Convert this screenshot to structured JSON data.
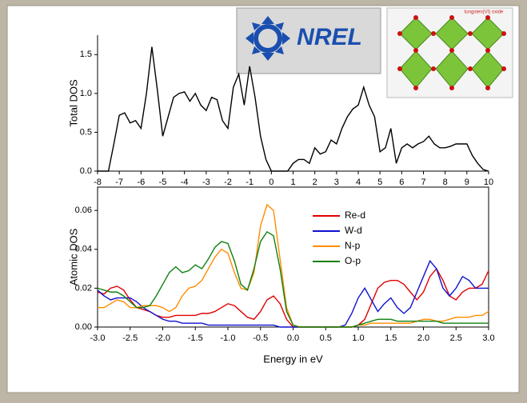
{
  "logo": {
    "text": "NREL"
  },
  "inset": {
    "caption": "tungsten(VI) oxide"
  },
  "chart_data": [
    {
      "type": "line",
      "ylabel": "Total DOS",
      "x": [
        -8,
        -7.75,
        -7.5,
        -7.25,
        -7,
        -6.75,
        -6.5,
        -6.25,
        -6,
        -5.75,
        -5.5,
        -5.25,
        -5,
        -4.75,
        -4.5,
        -4.25,
        -4,
        -3.75,
        -3.5,
        -3.25,
        -3,
        -2.75,
        -2.5,
        -2.25,
        -2,
        -1.75,
        -1.5,
        -1.25,
        -1,
        -0.75,
        -0.5,
        -0.25,
        0,
        0.25,
        0.5,
        0.75,
        1,
        1.25,
        1.5,
        1.75,
        2,
        2.25,
        2.5,
        2.75,
        3,
        3.25,
        3.5,
        3.75,
        4,
        4.25,
        4.5,
        4.75,
        5,
        5.25,
        5.5,
        5.75,
        6,
        6.25,
        6.5,
        6.75,
        7,
        7.25,
        7.5,
        7.75,
        8,
        8.25,
        8.5,
        8.75,
        9,
        9.25,
        9.5,
        9.75,
        10
      ],
      "values": [
        0,
        0,
        0,
        0.35,
        0.72,
        0.75,
        0.62,
        0.65,
        0.55,
        1.0,
        1.6,
        1.05,
        0.45,
        0.7,
        0.95,
        1.0,
        1.02,
        0.9,
        1.0,
        0.85,
        0.78,
        0.95,
        0.92,
        0.65,
        0.55,
        1.08,
        1.25,
        0.85,
        1.35,
        0.95,
        0.45,
        0.15,
        0,
        0,
        0,
        0,
        0.1,
        0.15,
        0.15,
        0.1,
        0.3,
        0.22,
        0.25,
        0.4,
        0.35,
        0.55,
        0.7,
        0.8,
        0.85,
        1.08,
        0.85,
        0.7,
        0.25,
        0.3,
        0.55,
        0.1,
        0.3,
        0.35,
        0.3,
        0.35,
        0.38,
        0.45,
        0.35,
        0.3,
        0.3,
        0.32,
        0.35,
        0.35,
        0.35,
        0.2,
        0.1,
        0.02,
        0
      ],
      "color": "#000000",
      "xlim": [
        -8,
        10
      ],
      "ylim": [
        0,
        1.75
      ],
      "xticks": [
        -8,
        -7,
        -6,
        -5,
        -4,
        -3,
        -2,
        -1,
        0,
        1,
        2,
        3,
        4,
        5,
        6,
        7,
        8,
        9,
        10
      ],
      "yticks": [
        {
          "value": 0,
          "label": "0.0"
        },
        {
          "value": 0.5,
          "label": "0.5"
        },
        {
          "value": 1,
          "label": "1.0"
        },
        {
          "value": 1.5,
          "label": "1.5"
        }
      ]
    },
    {
      "type": "line",
      "ylabel": "Atomic DOS",
      "xlabel": "Energy in eV",
      "x": [
        -3,
        -2.9,
        -2.8,
        -2.7,
        -2.6,
        -2.5,
        -2.4,
        -2.3,
        -2.2,
        -2.1,
        -2,
        -1.9,
        -1.8,
        -1.7,
        -1.6,
        -1.5,
        -1.4,
        -1.3,
        -1.2,
        -1.1,
        -1,
        -0.9,
        -0.8,
        -0.7,
        -0.6,
        -0.5,
        -0.4,
        -0.3,
        -0.2,
        -0.1,
        0,
        0.1,
        0.2,
        0.3,
        0.4,
        0.5,
        0.6,
        0.7,
        0.8,
        0.9,
        1,
        1.1,
        1.2,
        1.3,
        1.4,
        1.5,
        1.6,
        1.7,
        1.8,
        1.9,
        2,
        2.1,
        2.2,
        2.3,
        2.4,
        2.5,
        2.6,
        2.7,
        2.8,
        2.9,
        3
      ],
      "series": [
        {
          "name": "Re-d",
          "color": "#e00000",
          "values": [
            0.018,
            0.017,
            0.02,
            0.021,
            0.019,
            0.014,
            0.01,
            0.009,
            0.008,
            0.006,
            0.005,
            0.005,
            0.006,
            0.006,
            0.006,
            0.006,
            0.007,
            0.007,
            0.008,
            0.01,
            0.012,
            0.011,
            0.008,
            0.005,
            0.004,
            0.008,
            0.014,
            0.016,
            0.012,
            0.004,
            0,
            0,
            0,
            0,
            0,
            0,
            0,
            0,
            0,
            0,
            0.001,
            0.004,
            0.012,
            0.02,
            0.023,
            0.024,
            0.024,
            0.022,
            0.018,
            0.014,
            0.018,
            0.026,
            0.03,
            0.024,
            0.016,
            0.014,
            0.018,
            0.02,
            0.02,
            0.022,
            0.029
          ]
        },
        {
          "name": "W-d",
          "color": "#1010d0",
          "values": [
            0.019,
            0.016,
            0.014,
            0.015,
            0.015,
            0.015,
            0.013,
            0.01,
            0.008,
            0.006,
            0.004,
            0.003,
            0.003,
            0.002,
            0.002,
            0.002,
            0.002,
            0.001,
            0.001,
            0.001,
            0.001,
            0.001,
            0.001,
            0.001,
            0.001,
            0.001,
            0.001,
            0.001,
            0,
            0,
            0,
            0,
            0,
            0,
            0,
            0,
            0,
            0,
            0.001,
            0.007,
            0.015,
            0.02,
            0.014,
            0.008,
            0.012,
            0.015,
            0.01,
            0.007,
            0.01,
            0.018,
            0.026,
            0.034,
            0.03,
            0.02,
            0.016,
            0.02,
            0.026,
            0.024,
            0.02,
            0.02,
            0.02
          ]
        },
        {
          "name": "N-p",
          "color": "#ff8c00",
          "values": [
            0.01,
            0.01,
            0.012,
            0.014,
            0.013,
            0.01,
            0.01,
            0.011,
            0.011,
            0.011,
            0.01,
            0.008,
            0.01,
            0.016,
            0.02,
            0.021,
            0.024,
            0.03,
            0.036,
            0.04,
            0.038,
            0.028,
            0.02,
            0.019,
            0.028,
            0.052,
            0.063,
            0.06,
            0.035,
            0.01,
            0.001,
            0,
            0,
            0,
            0,
            0,
            0,
            0,
            0,
            0,
            0.001,
            0.001,
            0.002,
            0.002,
            0.002,
            0.002,
            0.002,
            0.002,
            0.002,
            0.003,
            0.004,
            0.004,
            0.003,
            0.003,
            0.004,
            0.005,
            0.005,
            0.005,
            0.006,
            0.006,
            0.008
          ]
        },
        {
          "name": "O-p",
          "color": "#108010",
          "values": [
            0.02,
            0.019,
            0.018,
            0.018,
            0.016,
            0.013,
            0.01,
            0.01,
            0.011,
            0.016,
            0.022,
            0.028,
            0.031,
            0.028,
            0.029,
            0.032,
            0.03,
            0.035,
            0.041,
            0.044,
            0.043,
            0.034,
            0.022,
            0.019,
            0.03,
            0.044,
            0.049,
            0.047,
            0.03,
            0.008,
            0.001,
            0,
            0,
            0,
            0,
            0,
            0,
            0,
            0,
            0,
            0.001,
            0.002,
            0.003,
            0.004,
            0.004,
            0.004,
            0.003,
            0.003,
            0.003,
            0.003,
            0.003,
            0.003,
            0.003,
            0.002,
            0.002,
            0.002,
            0.002,
            0.002,
            0.002,
            0.002,
            0.002
          ]
        }
      ],
      "legend": "upper right",
      "xlim": [
        -3,
        3
      ],
      "ylim": [
        0,
        0.072
      ],
      "xticks": [
        {
          "value": -3,
          "label": "-3.0"
        },
        {
          "value": -2.5,
          "label": "-2.5"
        },
        {
          "value": -2,
          "label": "-2.0"
        },
        {
          "value": -1.5,
          "label": "-1.5"
        },
        {
          "value": -1,
          "label": "-1.0"
        },
        {
          "value": -0.5,
          "label": "-0.5"
        },
        {
          "value": 0,
          "label": "0.0"
        },
        {
          "value": 0.5,
          "label": "0.5"
        },
        {
          "value": 1,
          "label": "1.0"
        },
        {
          "value": 1.5,
          "label": "1.5"
        },
        {
          "value": 2,
          "label": "2.0"
        },
        {
          "value": 2.5,
          "label": "2.5"
        },
        {
          "value": 3,
          "label": "3.0"
        }
      ],
      "yticks": [
        {
          "value": 0,
          "label": "0.00"
        },
        {
          "value": 0.02,
          "label": "0.02"
        },
        {
          "value": 0.04,
          "label": "0.04"
        },
        {
          "value": 0.06,
          "label": "0.06"
        }
      ]
    }
  ]
}
